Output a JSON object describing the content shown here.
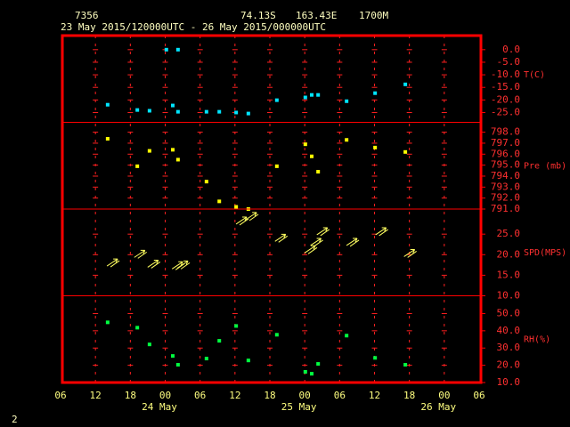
{
  "header": {
    "station": "7356",
    "latitude": "74.13S",
    "longitude": "163.43E",
    "elevation": "1700M",
    "period": "23 May 2015/120000UTC - 26 May 2015/000000UTC"
  },
  "footer": "2",
  "chart_data": [
    {
      "type": "scatter",
      "ylabel": "T(C)",
      "color": "#00e5ff",
      "xlim": [
        0,
        72
      ],
      "ylim": [
        -28.9,
        5.6
      ],
      "yticks": [
        {
          "value": 0,
          "label": "0.0"
        },
        {
          "value": -5,
          "label": "-5.0"
        },
        {
          "value": -10,
          "label": "-10.0"
        },
        {
          "value": -15,
          "label": "-15.0"
        },
        {
          "value": -20,
          "label": "-20.0"
        },
        {
          "value": -25,
          "label": "-25.0"
        }
      ],
      "x": [
        8.1,
        13.2,
        15.3,
        18.2,
        20.2,
        19.3,
        20.2,
        25.1,
        27.3,
        30.2,
        32.3,
        37.2,
        42.1,
        43.2,
        44.3,
        49.2,
        54.1,
        59.3
      ],
      "values": [
        -21.9,
        -24.0,
        -24.3,
        0.0,
        0.0,
        -22.2,
        -24.7,
        -24.7,
        -24.7,
        -25.0,
        -25.4,
        -20.1,
        -19.0,
        -18.0,
        -18.0,
        -20.5,
        -17.3,
        -13.8
      ]
    },
    {
      "type": "scatter",
      "ylabel": "Pre (mb)",
      "color": "#ffff00",
      "xlim": [
        0,
        72
      ],
      "ylim": [
        791.0,
        798.9
      ],
      "yticks": [
        {
          "value": 798,
          "label": "798.0"
        },
        {
          "value": 797,
          "label": "797.0"
        },
        {
          "value": 796,
          "label": "796.0"
        },
        {
          "value": 795,
          "label": "795.0"
        },
        {
          "value": 794,
          "label": "794.0"
        },
        {
          "value": 793,
          "label": "793.0"
        },
        {
          "value": 792,
          "label": "792.0"
        },
        {
          "value": 791,
          "label": "791.0"
        }
      ],
      "x": [
        8.1,
        13.2,
        15.3,
        19.3,
        20.2,
        25.1,
        27.3,
        30.2,
        32.3,
        37.2,
        42.1,
        43.2,
        44.3,
        49.2,
        54.1,
        59.3
      ],
      "values": [
        797.4,
        794.9,
        796.3,
        796.4,
        795.5,
        793.5,
        791.7,
        791.2,
        791.0,
        794.9,
        796.9,
        795.8,
        794.4,
        797.3,
        796.6,
        796.2
      ]
    },
    {
      "type": "arrow",
      "ylabel": "SPD(MPS)",
      "color": "#ffff60",
      "xlim": [
        0,
        72
      ],
      "ylim": [
        10,
        31.1
      ],
      "yticks": [
        {
          "value": 25,
          "label": "25.0"
        },
        {
          "value": 20,
          "label": "20.0"
        },
        {
          "value": 15,
          "label": "15.0"
        },
        {
          "value": 10,
          "label": "10.0"
        }
      ],
      "x": [
        8.9,
        13.6,
        15.9,
        20.1,
        21.0,
        31.1,
        32.8,
        37.8,
        42.9,
        43.9,
        45.0,
        50.1,
        55.1,
        60.0
      ],
      "values": [
        18.1,
        20.2,
        17.8,
        17.4,
        17.6,
        28.3,
        29.4,
        24.1,
        21.3,
        23.1,
        25.7,
        23.1,
        25.7,
        20.4
      ]
    },
    {
      "type": "scatter",
      "ylabel": "RH(%)",
      "color": "#00ff40",
      "xlim": [
        0,
        72
      ],
      "ylim": [
        10,
        60.3
      ],
      "yticks": [
        {
          "value": 50,
          "label": "50.0"
        },
        {
          "value": 40,
          "label": "40.0"
        },
        {
          "value": 30,
          "label": "30.0"
        },
        {
          "value": 20,
          "label": "20.0"
        },
        {
          "value": 10,
          "label": "10.0"
        }
      ],
      "x": [
        8.1,
        13.2,
        15.3,
        19.3,
        20.2,
        25.1,
        27.3,
        30.2,
        32.3,
        37.2,
        42.1,
        43.2,
        44.3,
        49.2,
        54.1,
        59.3
      ],
      "values": [
        44.9,
        41.8,
        32.1,
        25.4,
        20.3,
        23.9,
        34.2,
        42.8,
        22.8,
        37.7,
        16.2,
        15.1,
        20.8,
        37.2,
        24.3,
        20.3
      ],
      "xticks": [
        {
          "value": 0,
          "label": "06"
        },
        {
          "value": 6,
          "label": "12"
        },
        {
          "value": 12,
          "label": "18"
        },
        {
          "value": 18,
          "label": "00"
        },
        {
          "value": 24,
          "label": "06"
        },
        {
          "value": 30,
          "label": "12"
        },
        {
          "value": 36,
          "label": "18"
        },
        {
          "value": 42,
          "label": "00"
        },
        {
          "value": 48,
          "label": "06"
        },
        {
          "value": 54,
          "label": "12"
        },
        {
          "value": 60,
          "label": "18"
        },
        {
          "value": 66,
          "label": "00"
        },
        {
          "value": 72,
          "label": "06"
        }
      ],
      "day_labels": [
        {
          "value": 17,
          "label": "24 May"
        },
        {
          "value": 41,
          "label": "25 May"
        },
        {
          "value": 65,
          "label": "26 May"
        }
      ]
    }
  ]
}
